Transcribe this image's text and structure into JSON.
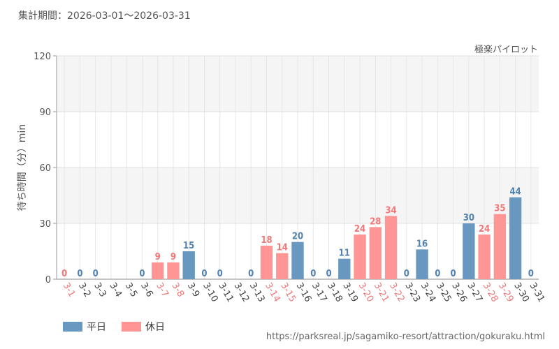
{
  "header": {
    "period_label": "集計期間：2026-03-01～2026-03-31",
    "credit": "極楽パイロット"
  },
  "footer": {
    "url": "https://parksreal.jp/sagamiko-resort/attraction/gokuraku.html"
  },
  "legend": [
    {
      "label": "平日",
      "color": "#6897bf"
    },
    {
      "label": "休日",
      "color": "#ff9595"
    }
  ],
  "colors": {
    "weekday": "#6897bf",
    "holiday": "#ff9595",
    "weekday_text": "#5282ad",
    "holiday_text": "#f07878",
    "axis_text": "#555555"
  },
  "chart_data": {
    "type": "bar",
    "ylabel": "待ち時間（分）min",
    "ylim": [
      0,
      120
    ],
    "yticks": [
      0,
      30,
      60,
      90,
      120
    ],
    "grid": true,
    "legend_position": "bottom-left",
    "categories": [
      "3-1",
      "3-2",
      "3-3",
      "3-4",
      "3-5",
      "3-6",
      "3-7",
      "3-8",
      "3-9",
      "3-10",
      "3-11",
      "3-12",
      "3-13",
      "3-14",
      "3-15",
      "3-16",
      "3-17",
      "3-18",
      "3-19",
      "3-20",
      "3-21",
      "3-22",
      "3-23",
      "3-24",
      "3-25",
      "3-26",
      "3-27",
      "3-28",
      "3-29",
      "3-30",
      "3-31"
    ],
    "values": [
      0,
      0,
      0,
      null,
      null,
      0,
      9,
      9,
      15,
      0,
      0,
      null,
      0,
      18,
      14,
      20,
      0,
      0,
      11,
      24,
      28,
      34,
      0,
      16,
      0,
      0,
      30,
      24,
      35,
      44,
      0
    ],
    "day_type": [
      "holiday",
      "weekday",
      "weekday",
      "weekday",
      "weekday",
      "weekday",
      "holiday",
      "holiday",
      "weekday",
      "weekday",
      "weekday",
      "weekday",
      "weekday",
      "holiday",
      "holiday",
      "weekday",
      "weekday",
      "weekday",
      "weekday",
      "holiday",
      "holiday",
      "holiday",
      "weekday",
      "weekday",
      "weekday",
      "weekday",
      "weekday",
      "holiday",
      "holiday",
      "weekday",
      "weekday"
    ]
  }
}
